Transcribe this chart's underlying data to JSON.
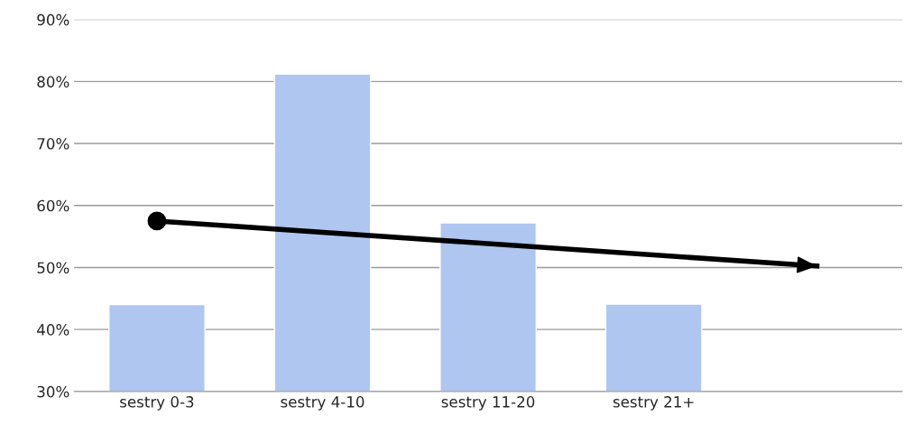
{
  "chart_data": {
    "type": "bar",
    "categories": [
      "sestry 0-3",
      "sestry 4-10",
      "sestry 11-20",
      "sestry 21+",
      null
    ],
    "series": [
      {
        "color": "#aec6f0",
        "values": [
          44,
          81.2,
          57.2,
          44.1,
          null
        ]
      },
      {
        "type": "line",
        "color": "#000000",
        "marker": "circle",
        "values": [
          57.5,
          null,
          null,
          null,
          50.2
        ]
      }
    ],
    "ylim": [
      30,
      90
    ],
    "yticks": [
      {
        "value": 30,
        "label": "30%"
      },
      {
        "value": 40,
        "label": "40%"
      },
      {
        "value": 50,
        "label": "50%"
      },
      {
        "value": 60,
        "label": "60%"
      },
      {
        "value": 70,
        "label": "70%"
      },
      {
        "value": 80,
        "label": "80%"
      },
      {
        "value": 90,
        "label": "90%"
      }
    ],
    "grid": "y"
  }
}
